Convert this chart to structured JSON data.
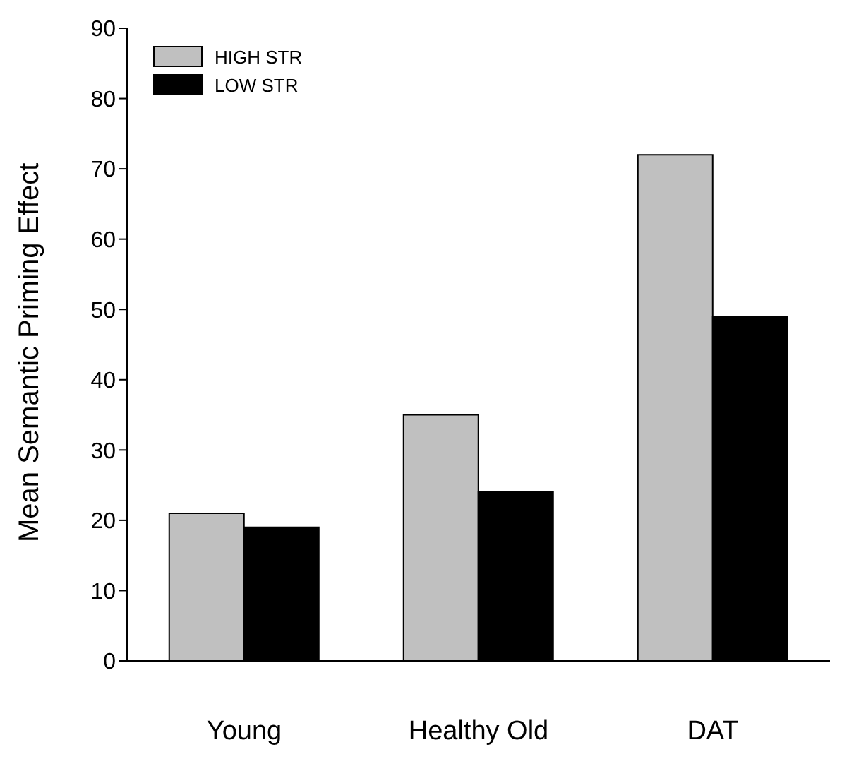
{
  "chart_data": {
    "type": "bar",
    "ylabel": "Mean Semantic Priming Effect",
    "categories": [
      "Young",
      "Healthy Old",
      "DAT"
    ],
    "series": [
      {
        "name": "HIGH STR",
        "color": "#c0c0c0",
        "values": [
          21,
          35,
          72
        ]
      },
      {
        "name": "LOW STR",
        "color": "#000000",
        "values": [
          19,
          24,
          49
        ]
      }
    ],
    "ylim": [
      0,
      90
    ],
    "yticks": [
      0,
      10,
      20,
      30,
      40,
      50,
      60,
      70,
      80,
      90
    ],
    "grid": false,
    "legend": "top left"
  }
}
